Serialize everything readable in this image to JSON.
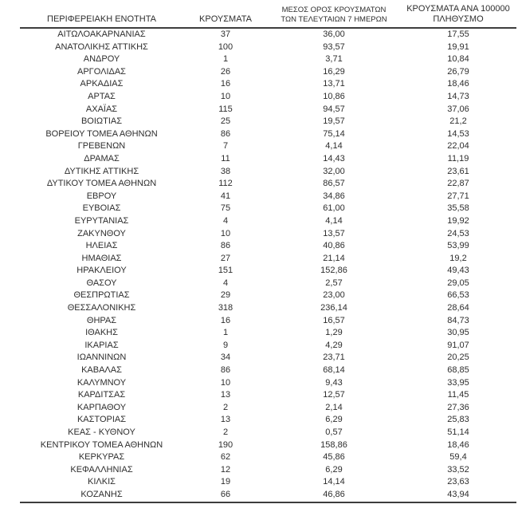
{
  "colors": {
    "background": "#ffffff",
    "text": "#2e2e2e",
    "rule": "#3d3d3d"
  },
  "table": {
    "header_lines": {
      "col1": [
        "ΠΕΡΙΦΕΡΕΙΑΚΗ ΕΝΟΤΗΤΑ"
      ],
      "col2": [
        "ΚΡΟΥΣΜΑΤΑ"
      ],
      "col3": [
        "ΜΕΣΟΣ ΟΡΟΣ ΚΡΟΥΣΜΑΤΩΝ",
        "ΤΩΝ ΤΕΛΕΥΤΑΙΩΝ 7 ΗΜΕΡΩΝ"
      ],
      "col4": [
        "ΚΡΟΥΣΜΑΤΑ ΑΝΑ 100000",
        "ΠΛΗΘΥΣΜΟ"
      ]
    }
  },
  "chart_data": {
    "type": "table",
    "columns": [
      "ΠΕΡΙΦΕΡΕΙΑΚΗ ΕΝΟΤΗΤΑ",
      "ΚΡΟΥΣΜΑΤΑ",
      "ΜΕΣΟΣ ΟΡΟΣ ΚΡΟΥΣΜΑΤΩΝ ΤΩΝ ΤΕΛΕΥΤΑΙΩΝ 7 ΗΜΕΡΩΝ",
      "ΚΡΟΥΣΜΑΤΑ ΑΝΑ 100000 ΠΛΗΘΥΣΜΟ"
    ],
    "rows": [
      [
        "ΑΙΤΩΛΟΑΚΑΡΝΑΝΙΑΣ",
        "37",
        "36,00",
        "17,55"
      ],
      [
        "ΑΝΑΤΟΛΙΚΗΣ ΑΤΤΙΚΗΣ",
        "100",
        "93,57",
        "19,91"
      ],
      [
        "ΑΝΔΡΟΥ",
        "1",
        "3,71",
        "10,84"
      ],
      [
        "ΑΡΓΟΛΙΔΑΣ",
        "26",
        "16,29",
        "26,79"
      ],
      [
        "ΑΡΚΑΔΙΑΣ",
        "16",
        "13,71",
        "18,46"
      ],
      [
        "ΑΡΤΑΣ",
        "10",
        "10,86",
        "14,73"
      ],
      [
        "ΑΧΑΪΑΣ",
        "115",
        "94,57",
        "37,06"
      ],
      [
        "ΒΟΙΩΤΙΑΣ",
        "25",
        "19,57",
        "21,2"
      ],
      [
        "ΒΟΡΕΙΟΥ ΤΟΜΕΑ ΑΘΗΝΩΝ",
        "86",
        "75,14",
        "14,53"
      ],
      [
        "ΓΡΕΒΕΝΩΝ",
        "7",
        "4,14",
        "22,04"
      ],
      [
        "ΔΡΑΜΑΣ",
        "11",
        "14,43",
        "11,19"
      ],
      [
        "ΔΥΤΙΚΗΣ ΑΤΤΙΚΗΣ",
        "38",
        "32,00",
        "23,61"
      ],
      [
        "ΔΥΤΙΚΟΥ ΤΟΜΕΑ ΑΘΗΝΩΝ",
        "112",
        "86,57",
        "22,87"
      ],
      [
        "ΕΒΡΟΥ",
        "41",
        "34,86",
        "27,71"
      ],
      [
        "ΕΥΒΟΙΑΣ",
        "75",
        "61,00",
        "35,58"
      ],
      [
        "ΕΥΡΥΤΑΝΙΑΣ",
        "4",
        "4,14",
        "19,92"
      ],
      [
        "ΖΑΚΥΝΘΟΥ",
        "10",
        "13,57",
        "24,53"
      ],
      [
        "ΗΛΕΙΑΣ",
        "86",
        "40,86",
        "53,99"
      ],
      [
        "ΗΜΑΘΙΑΣ",
        "27",
        "21,14",
        "19,2"
      ],
      [
        "ΗΡΑΚΛΕΙΟΥ",
        "151",
        "152,86",
        "49,43"
      ],
      [
        "ΘΑΣΟΥ",
        "4",
        "2,57",
        "29,05"
      ],
      [
        "ΘΕΣΠΡΩΤΙΑΣ",
        "29",
        "23,00",
        "66,53"
      ],
      [
        "ΘΕΣΣΑΛΟΝΙΚΗΣ",
        "318",
        "236,14",
        "28,64"
      ],
      [
        "ΘΗΡΑΣ",
        "16",
        "16,57",
        "84,73"
      ],
      [
        "ΙΘΑΚΗΣ",
        "1",
        "1,29",
        "30,95"
      ],
      [
        "ΙΚΑΡΙΑΣ",
        "9",
        "4,29",
        "91,07"
      ],
      [
        "ΙΩΑΝΝΙΝΩΝ",
        "34",
        "23,71",
        "20,25"
      ],
      [
        "ΚΑΒΑΛΑΣ",
        "86",
        "68,14",
        "68,85"
      ],
      [
        "ΚΑΛΥΜΝΟΥ",
        "10",
        "9,43",
        "33,95"
      ],
      [
        "ΚΑΡΔΙΤΣΑΣ",
        "13",
        "12,57",
        "11,45"
      ],
      [
        "ΚΑΡΠΑΘΟΥ",
        "2",
        "2,14",
        "27,36"
      ],
      [
        "ΚΑΣΤΟΡΙΑΣ",
        "13",
        "6,29",
        "25,83"
      ],
      [
        "ΚΕΑΣ - ΚΥΘΝΟΥ",
        "2",
        "0,57",
        "51,14"
      ],
      [
        "ΚΕΝΤΡΙΚΟΥ ΤΟΜΕΑ ΑΘΗΝΩΝ",
        "190",
        "158,86",
        "18,46"
      ],
      [
        "ΚΕΡΚΥΡΑΣ",
        "62",
        "45,86",
        "59,4"
      ],
      [
        "ΚΕΦΑΛΛΗΝΙΑΣ",
        "12",
        "6,29",
        "33,52"
      ],
      [
        "ΚΙΛΚΙΣ",
        "19",
        "14,14",
        "23,63"
      ],
      [
        "ΚΟΖΑΝΗΣ",
        "66",
        "46,86",
        "43,94"
      ]
    ]
  }
}
